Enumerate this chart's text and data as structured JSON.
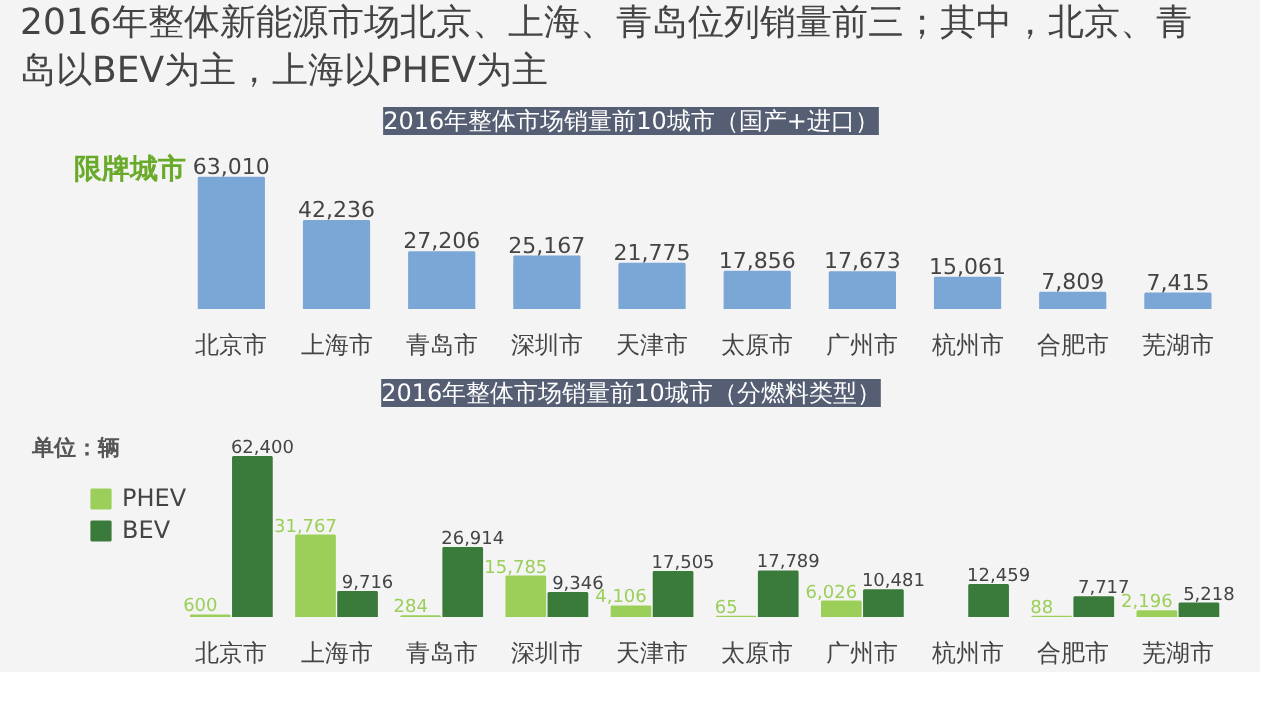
{
  "chart_data": [
    {
      "type": "bar",
      "title": "2016年整体新能源市场北京、上海、青岛位列销量前三；其中，北京、青岛以BEV为主，上海以PHEV为主",
      "subtitle": "2016年整体市场销量前10城市（国产+进口）",
      "categories": [
        "北京市",
        "上海市",
        "青岛市",
        "深圳市",
        "天津市",
        "太原市",
        "广州市",
        "杭州市",
        "合肥市",
        "芜湖市"
      ],
      "values": [
        63010,
        42236,
        27206,
        25167,
        21775,
        17856,
        17673,
        15061,
        7809,
        7415
      ],
      "value_labels": [
        "63,010",
        "42,236",
        "27,206",
        "25,167",
        "21,775",
        "17,856",
        "17,673",
        "15,061",
        "7,809",
        "7,415"
      ],
      "color": "#7ba7d6",
      "annotations": [
        "限牌城市"
      ],
      "grid": false
    },
    {
      "type": "bar",
      "title": "2016年整体市场销量前10城市（分燃料类型）",
      "categories": [
        "北京市",
        "上海市",
        "青岛市",
        "深圳市",
        "天津市",
        "太原市",
        "广州市",
        "杭州市",
        "合肥市",
        "芜湖市"
      ],
      "series": [
        {
          "name": "PHEV",
          "color": "#9bcf5a",
          "values": [
            600,
            31767,
            284,
            15785,
            4106,
            65,
            6026,
            null,
            88,
            2196
          ],
          "value_labels": [
            "600",
            "31,767",
            "284",
            "15,785",
            "4,106",
            "65",
            "6,026",
            null,
            "88",
            "2,196"
          ]
        },
        {
          "name": "BEV",
          "color": "#3a7a3a",
          "values": [
            62400,
            9716,
            26914,
            9346,
            17505,
            17789,
            10481,
            12459,
            7717,
            5218
          ],
          "value_labels": [
            "62,400",
            "9,716",
            "26,914",
            "9,346",
            "17,505",
            "17,789",
            "10,481",
            "12,459",
            "7,717",
            "5,218"
          ]
        }
      ],
      "legend": "top left",
      "annotations": [
        "单位：辆"
      ],
      "grid": false
    }
  ]
}
